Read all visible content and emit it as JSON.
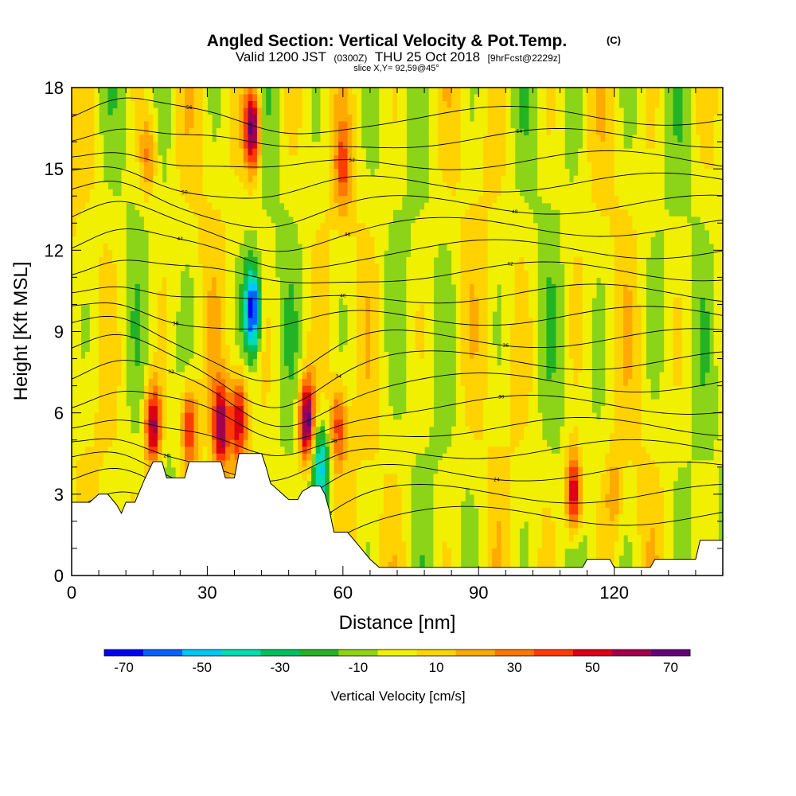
{
  "chart_data": {
    "type": "heatmap",
    "title": "Angled Section: Vertical Velocity & Pot.Temp.",
    "title_mark": "(C)",
    "subtitle_parts": [
      "Valid 1200 JST",
      "(0300Z)",
      "THU 25 Oct 2018",
      "[9hrFcst@2229z]"
    ],
    "slice_label": "slice X,Y= 92,59@45°",
    "xlabel": "Distance [nm]",
    "ylabel": "Height [Kft MSL]",
    "xlim": [
      0,
      144
    ],
    "ylim": [
      0,
      18
    ],
    "x_ticks": [
      0,
      30,
      60,
      90,
      120
    ],
    "y_ticks": [
      0,
      3,
      6,
      9,
      12,
      15,
      18
    ],
    "colorbar": {
      "label": "Vertical Velocity [cm/s]",
      "tick_labels": [
        "-70",
        "-50",
        "-30",
        "-10",
        "10",
        "30",
        "50",
        "70"
      ],
      "tick_values": [
        -70,
        -50,
        -30,
        -10,
        10,
        30,
        50,
        70
      ],
      "range": [
        -75,
        75
      ],
      "colors": [
        "#0000f0",
        "#0064ff",
        "#00c8ff",
        "#00dcb4",
        "#00c060",
        "#22b424",
        "#8cd418",
        "#f0f000",
        "#ffd200",
        "#ffaa00",
        "#ff7800",
        "#ff3c00",
        "#dc0014",
        "#a00050",
        "#640078"
      ]
    },
    "features": [
      {
        "x": 18,
        "y": 5.5,
        "value": 65
      },
      {
        "x": 26,
        "y": 5.5,
        "value": 50
      },
      {
        "x": 33,
        "y": 5.5,
        "value": 60
      },
      {
        "x": 37,
        "y": 5.8,
        "value": 55
      },
      {
        "x": 52,
        "y": 5.7,
        "value": 75
      },
      {
        "x": 59,
        "y": 5.5,
        "value": 40
      },
      {
        "x": 111,
        "y": 3.0,
        "value": 65
      },
      {
        "x": 40,
        "y": 16.5,
        "value": 75
      },
      {
        "x": 40,
        "y": 9.8,
        "value": -70
      },
      {
        "x": 55,
        "y": 4.0,
        "value": -45
      },
      {
        "x": 17,
        "y": 15.5,
        "value": 30
      },
      {
        "x": 60,
        "y": 15.0,
        "value": 30
      },
      {
        "x": 120,
        "y": 3.0,
        "value": 20
      }
    ],
    "terrain_height": [
      [
        0,
        2.7
      ],
      [
        4,
        2.7
      ],
      [
        6,
        3.0
      ],
      [
        8,
        3.0
      ],
      [
        10,
        2.6
      ],
      [
        11,
        2.3
      ],
      [
        12,
        2.7
      ],
      [
        14,
        2.7
      ],
      [
        15,
        3.1
      ],
      [
        16,
        3.5
      ],
      [
        18,
        4.2
      ],
      [
        20,
        4.2
      ],
      [
        21,
        3.6
      ],
      [
        25,
        3.6
      ],
      [
        26,
        4.2
      ],
      [
        33,
        4.2
      ],
      [
        34,
        3.6
      ],
      [
        36,
        3.6
      ],
      [
        37,
        4.5
      ],
      [
        42,
        4.5
      ],
      [
        43,
        4.0
      ],
      [
        44,
        3.4
      ],
      [
        46,
        3.1
      ],
      [
        48,
        2.8
      ],
      [
        50,
        2.8
      ],
      [
        51,
        3.1
      ],
      [
        53,
        3.3
      ],
      [
        55,
        3.3
      ],
      [
        56,
        3.0
      ],
      [
        57,
        2.4
      ],
      [
        58,
        1.6
      ],
      [
        61,
        1.6
      ],
      [
        62,
        1.4
      ],
      [
        64,
        1.0
      ],
      [
        66,
        0.6
      ],
      [
        68,
        0.3
      ],
      [
        113,
        0.3
      ],
      [
        114,
        0.6
      ],
      [
        119,
        0.6
      ],
      [
        120,
        0.3
      ],
      [
        128,
        0.3
      ],
      [
        129,
        0.6
      ],
      [
        138,
        0.6
      ],
      [
        139,
        1.3
      ],
      [
        144,
        1.3
      ]
    ],
    "contour_labels": [
      "20",
      "22",
      "24",
      "26",
      "28",
      "30",
      "32",
      "34",
      "36",
      "38",
      "40",
      "42",
      "44",
      "46",
      "48",
      "50",
      "52",
      "54",
      "56"
    ]
  }
}
